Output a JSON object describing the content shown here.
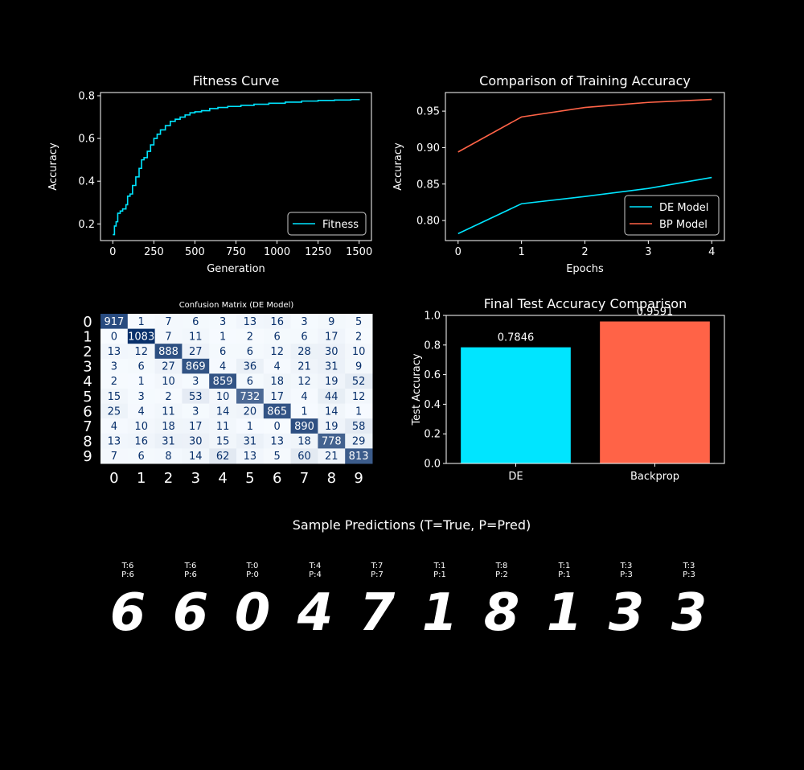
{
  "chart_data": [
    {
      "type": "line",
      "title": "Fitness Curve",
      "xlabel": "Generation",
      "ylabel": "Accuracy",
      "xlim": [
        -75,
        1575
      ],
      "ylim": [
        0.122,
        0.815
      ],
      "xticks": [
        0,
        250,
        500,
        750,
        1000,
        1250,
        1500
      ],
      "yticks": [
        0.2,
        0.4,
        0.6,
        0.8
      ],
      "legend": "lower right",
      "series": [
        {
          "name": "Fitness",
          "color": "#00e5ff",
          "x": [
            0,
            10,
            20,
            30,
            45,
            60,
            80,
            90,
            105,
            120,
            140,
            160,
            175,
            190,
            210,
            230,
            250,
            270,
            290,
            320,
            350,
            380,
            410,
            440,
            470,
            500,
            540,
            590,
            640,
            700,
            780,
            860,
            950,
            1050,
            1150,
            1250,
            1350,
            1450,
            1500
          ],
          "y": [
            0.15,
            0.19,
            0.21,
            0.25,
            0.26,
            0.27,
            0.29,
            0.33,
            0.34,
            0.38,
            0.42,
            0.46,
            0.5,
            0.51,
            0.54,
            0.57,
            0.6,
            0.62,
            0.64,
            0.66,
            0.68,
            0.69,
            0.7,
            0.71,
            0.72,
            0.725,
            0.73,
            0.74,
            0.745,
            0.75,
            0.755,
            0.76,
            0.765,
            0.77,
            0.775,
            0.778,
            0.78,
            0.782,
            0.785
          ]
        }
      ]
    },
    {
      "type": "line",
      "title": "Comparison of Training Accuracy",
      "xlabel": "Epochs",
      "ylabel": "Accuracy",
      "xlim": [
        -0.2,
        4.2
      ],
      "ylim": [
        0.7725,
        0.9755
      ],
      "xticks": [
        0,
        1,
        2,
        3,
        4
      ],
      "yticks": [
        0.8,
        0.85,
        0.9,
        0.95
      ],
      "legend": "lower right",
      "series": [
        {
          "name": "DE Model",
          "color": "#00e5ff",
          "x": [
            0,
            1,
            2,
            3,
            4
          ],
          "y": [
            0.782,
            0.823,
            0.833,
            0.844,
            0.859
          ]
        },
        {
          "name": "BP Model",
          "color": "#ff6347",
          "x": [
            0,
            1,
            2,
            3,
            4
          ],
          "y": [
            0.894,
            0.942,
            0.955,
            0.962,
            0.966
          ]
        }
      ]
    },
    {
      "type": "heatmap",
      "title": "Confusion Matrix (DE Model)",
      "labels": [
        "0",
        "1",
        "2",
        "3",
        "4",
        "5",
        "6",
        "7",
        "8",
        "9"
      ],
      "cmap": "Blues",
      "values": [
        [
          917,
          1,
          7,
          6,
          3,
          13,
          16,
          3,
          9,
          5
        ],
        [
          0,
          1083,
          7,
          11,
          1,
          2,
          6,
          6,
          17,
          2
        ],
        [
          13,
          12,
          888,
          27,
          6,
          6,
          12,
          28,
          30,
          10
        ],
        [
          3,
          6,
          27,
          869,
          4,
          36,
          4,
          21,
          31,
          9
        ],
        [
          2,
          1,
          10,
          3,
          859,
          6,
          18,
          12,
          19,
          52
        ],
        [
          15,
          3,
          2,
          53,
          10,
          732,
          17,
          4,
          44,
          12
        ],
        [
          25,
          4,
          11,
          3,
          14,
          20,
          865,
          1,
          14,
          1
        ],
        [
          4,
          10,
          18,
          17,
          11,
          1,
          0,
          890,
          19,
          58
        ],
        [
          13,
          16,
          31,
          30,
          15,
          31,
          13,
          18,
          778,
          29
        ],
        [
          7,
          6,
          8,
          14,
          62,
          13,
          5,
          60,
          21,
          813
        ]
      ]
    },
    {
      "type": "bar",
      "title": "Final Test Accuracy Comparison",
      "ylabel": "Test Accuracy",
      "xlabel": "",
      "categories": [
        "DE",
        "Backprop"
      ],
      "values": [
        0.7846,
        0.9591
      ],
      "data_labels": [
        "0.7846",
        "0.9591"
      ],
      "colors": [
        "#00e5ff",
        "#ff6347"
      ],
      "ylim": [
        0,
        1.0
      ],
      "yticks": [
        "0.0",
        "0.2",
        "0.4",
        "0.6",
        "0.8",
        "1.0"
      ]
    }
  ],
  "samples": {
    "title": "Sample Predictions (T=True, P=Pred)",
    "items": [
      {
        "t": "T:6",
        "p": "P:6",
        "digit": "6"
      },
      {
        "t": "T:6",
        "p": "P:6",
        "digit": "6"
      },
      {
        "t": "T:0",
        "p": "P:0",
        "digit": "0"
      },
      {
        "t": "T:4",
        "p": "P:4",
        "digit": "4"
      },
      {
        "t": "T:7",
        "p": "P:7",
        "digit": "7"
      },
      {
        "t": "T:1",
        "p": "P:1",
        "digit": "1"
      },
      {
        "t": "T:8",
        "p": "P:2",
        "digit": "8"
      },
      {
        "t": "T:1",
        "p": "P:1",
        "digit": "1"
      },
      {
        "t": "T:3",
        "p": "P:3",
        "digit": "3"
      },
      {
        "t": "T:3",
        "p": "P:3",
        "digit": "3"
      }
    ]
  }
}
